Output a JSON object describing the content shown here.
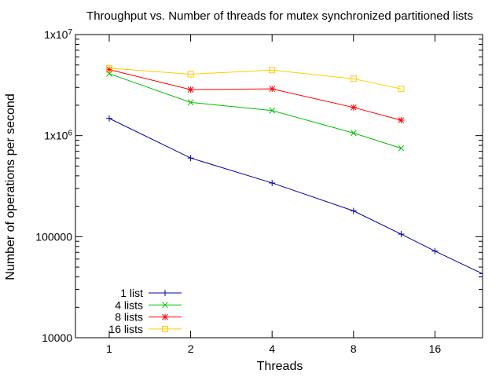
{
  "chart_data": {
    "type": "line",
    "title": "Throughput vs. Number of threads for mutex synchronized partitioned lists",
    "xlabel": "Threads",
    "ylabel": "Number of operations per second",
    "x_scale": "log2",
    "y_scale": "log10",
    "xlim": [
      0.75,
      24
    ],
    "ylim": [
      10000,
      10000000
    ],
    "x_ticks": [
      {
        "value": 1,
        "label": "1"
      },
      {
        "value": 2,
        "label": "2"
      },
      {
        "value": 4,
        "label": "4"
      },
      {
        "value": 8,
        "label": "8"
      },
      {
        "value": 16,
        "label": "16"
      }
    ],
    "y_ticks": [
      {
        "value": 10000,
        "base": "10000",
        "sup": ""
      },
      {
        "value": 100000,
        "base": "100000",
        "sup": ""
      },
      {
        "value": 1000000,
        "base": "1x10",
        "sup": "6"
      },
      {
        "value": 10000000,
        "base": "1x10",
        "sup": "7"
      }
    ],
    "grid": false,
    "legend_position": "bottom-left",
    "series": [
      {
        "name": "1 list",
        "color": "#0000a0",
        "marker": "plus",
        "x": [
          1,
          2,
          4,
          8,
          12,
          16,
          24
        ],
        "y": [
          1480000,
          600000,
          340000,
          180000,
          106000,
          72000,
          43000
        ]
      },
      {
        "name": "4 lists",
        "color": "#00c000",
        "marker": "x",
        "x": [
          1,
          2,
          4,
          8,
          12
        ],
        "y": [
          4100000,
          2130000,
          1770000,
          1060000,
          750000
        ]
      },
      {
        "name": "8 lists",
        "color": "#ff0000",
        "marker": "star",
        "x": [
          1,
          2,
          4,
          8,
          12
        ],
        "y": [
          4500000,
          2850000,
          2900000,
          1900000,
          1420000
        ]
      },
      {
        "name": "16 lists",
        "color": "#ffcc00",
        "marker": "square",
        "x": [
          1,
          2,
          4,
          8,
          12
        ],
        "y": [
          4650000,
          4050000,
          4450000,
          3650000,
          2900000
        ]
      }
    ]
  }
}
